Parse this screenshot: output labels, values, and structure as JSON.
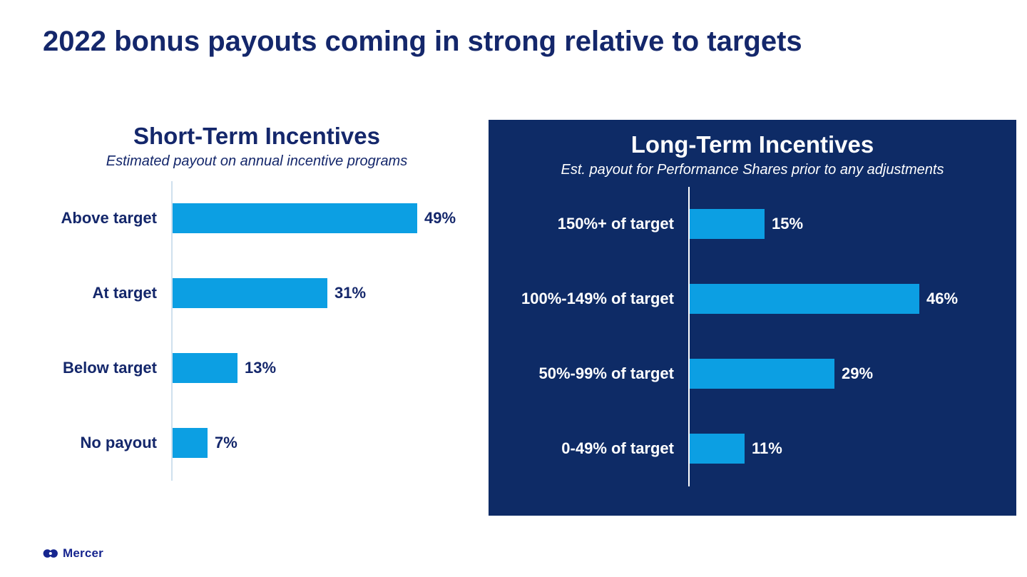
{
  "slide": {
    "title": "2022 bonus payouts coming in strong relative to targets",
    "brand": "Mercer"
  },
  "colors": {
    "navy_text": "#14276B",
    "bar_blue": "#0C9FE3",
    "panel_navy": "#0E2B66",
    "white": "#FFFFFF"
  },
  "chart_data": [
    {
      "type": "bar",
      "orientation": "horizontal",
      "theme": "light",
      "title": "Short-Term Incentives",
      "subtitle": "Estimated payout on annual incentive programs",
      "categories": [
        "Above target",
        "At target",
        "Below target",
        "No payout"
      ],
      "values": [
        49,
        31,
        13,
        7
      ],
      "value_labels": [
        "49%",
        "31%",
        "13%",
        "7%"
      ],
      "unit": "%",
      "xlim": [
        0,
        55
      ],
      "grid": false,
      "legend": false
    },
    {
      "type": "bar",
      "orientation": "horizontal",
      "theme": "dark",
      "title": "Long-Term Incentives",
      "subtitle": "Est. payout for Performance Shares prior to any adjustments",
      "categories": [
        "150%+ of target",
        "100%-149% of target",
        "50%-99% of target",
        "0-49% of target"
      ],
      "values": [
        15,
        46,
        29,
        11
      ],
      "value_labels": [
        "15%",
        "46%",
        "29%",
        "11%"
      ],
      "unit": "%",
      "xlim": [
        0,
        55
      ],
      "grid": false,
      "legend": false
    }
  ]
}
